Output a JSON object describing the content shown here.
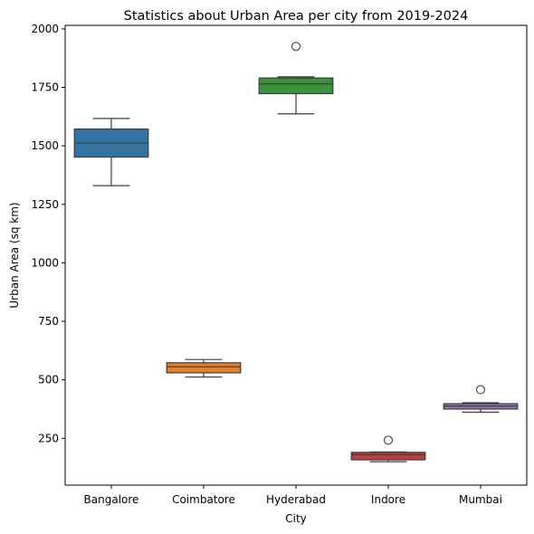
{
  "chart_data": {
    "type": "box",
    "title": "Statistics about Urban Area per city from 2019-2024",
    "xlabel": "City",
    "ylabel": "Urban Area (sq km)",
    "ylim": [
      50,
      2015
    ],
    "yticks": [
      250,
      500,
      750,
      1000,
      1250,
      1500,
      1750,
      2000
    ],
    "grid": false,
    "categories": [
      "Bangalore",
      "Coimbatore",
      "Hyderabad",
      "Indore",
      "Mumbai"
    ],
    "boxes": [
      {
        "name": "Bangalore",
        "color": "#3274a1",
        "min": 1330,
        "q1": 1452,
        "median": 1512,
        "q3": 1572,
        "max": 1617,
        "outliers": []
      },
      {
        "name": "Coimbatore",
        "color": "#e1812c",
        "min": 512,
        "q1": 530,
        "median": 556,
        "q3": 573,
        "max": 587,
        "outliers": []
      },
      {
        "name": "Hyderabad",
        "color": "#3a923a",
        "min": 1637,
        "q1": 1723,
        "median": 1765,
        "q3": 1790,
        "max": 1795,
        "outliers": [
          1925
        ]
      },
      {
        "name": "Indore",
        "color": "#c03d3e",
        "min": 150,
        "q1": 158,
        "median": 180,
        "q3": 190,
        "max": 192,
        "outliers": [
          242
        ]
      },
      {
        "name": "Mumbai",
        "color": "#9372b2",
        "min": 362,
        "q1": 375,
        "median": 388,
        "q3": 398,
        "max": 402,
        "outliers": [
          458
        ]
      }
    ]
  }
}
